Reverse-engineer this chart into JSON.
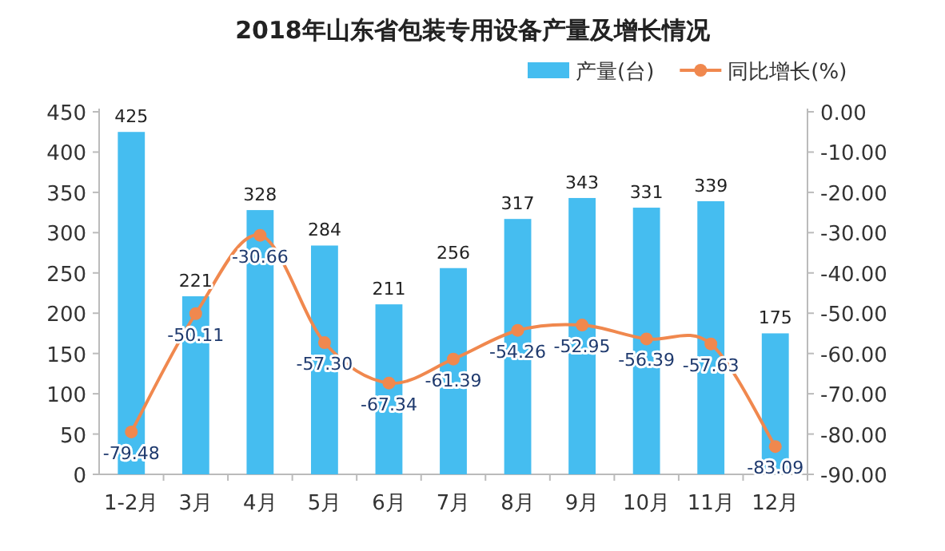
{
  "chart_data": {
    "type": "bar",
    "title": "2018年山东省包装专用设备产量及增长情况",
    "categories": [
      "1-2月",
      "3月",
      "4月",
      "5月",
      "6月",
      "7月",
      "8月",
      "9月",
      "10月",
      "11月",
      "12月"
    ],
    "series": [
      {
        "name": "产量(台)",
        "color": "#45bdf0",
        "values": [
          425,
          221,
          328,
          284,
          211,
          256,
          317,
          343,
          331,
          339,
          175
        ]
      },
      {
        "name": "同比增长(%)",
        "type": "line",
        "axis": "y2",
        "color": "#f0884e",
        "marker": "circle",
        "values": [
          -79.48,
          -50.11,
          -30.66,
          -57.3,
          -67.34,
          -61.39,
          -54.26,
          -52.95,
          -56.39,
          -57.63,
          -83.09
        ],
        "value_labels": [
          "-79.48",
          "-50.11",
          "-30.66",
          "-57.30",
          "-67.34",
          "-61.39",
          "-54.26",
          "-52.95",
          "-56.39",
          "-57.63",
          "-83.09"
        ]
      }
    ],
    "ylim": [
      0,
      450
    ],
    "yticks": [
      0,
      50,
      100,
      150,
      200,
      250,
      300,
      350,
      400,
      450
    ],
    "y2lim": [
      -90,
      0
    ],
    "y2ticks": [
      {
        "value": 0,
        "label": "0.00"
      },
      {
        "value": -10,
        "label": "-10.00"
      },
      {
        "value": -20,
        "label": "-20.00"
      },
      {
        "value": -30,
        "label": "-30.00"
      },
      {
        "value": -40,
        "label": "-40.00"
      },
      {
        "value": -50,
        "label": "-50.00"
      },
      {
        "value": -60,
        "label": "-60.00"
      },
      {
        "value": -70,
        "label": "-70.00"
      },
      {
        "value": -80,
        "label": "-80.00"
      },
      {
        "value": -90,
        "label": "-90.00"
      }
    ],
    "data_labels": true,
    "legend": "top",
    "grid": false
  }
}
